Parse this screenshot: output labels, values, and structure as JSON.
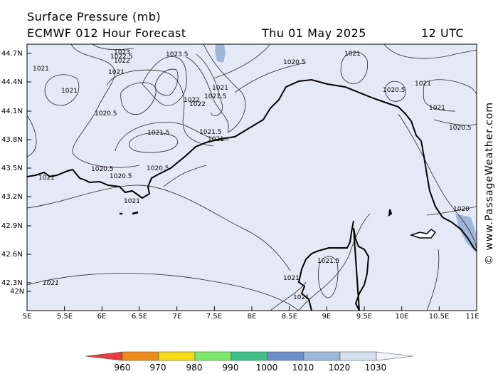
{
  "header": {
    "title": "Surface Pressure (mb)",
    "subtitle": "ECMWF 012 Hour Forecast",
    "date": "Thu 01 May 2025",
    "time": "12 UTC"
  },
  "credit": "© www.PassageWeather.com",
  "map": {
    "lat_labels": [
      "44.7N",
      "44.4N",
      "44.1N",
      "43.8N",
      "43.5N",
      "43.2N",
      "42.9N",
      "42.6N",
      "42.3N",
      "42N"
    ],
    "lon_labels": [
      "5E",
      "5.5E",
      "6E",
      "6.5E",
      "7E",
      "7.5E",
      "8E",
      "8.5E",
      "9E",
      "9.5E",
      "10E",
      "10.5E",
      "11E"
    ],
    "isobar_labels": [
      "1021",
      "1023",
      "1022",
      "1023.5",
      "1022.5",
      "1020.5",
      "1021",
      "1021",
      "1021",
      "1020.5",
      "1021",
      "1020.5",
      "1021",
      "1021.5",
      "1022",
      "1022",
      "1020.5",
      "1021",
      "1021.5",
      "1021.5",
      "1021",
      "1020.5",
      "1020.5",
      "1020.5",
      "1021",
      "1021",
      "1020",
      "1021.5",
      "1021",
      "1021",
      "1021"
    ],
    "colors": {
      "sea": "#e4eaf5",
      "land": "#ffffff",
      "high_band": "#9eb7d8"
    }
  },
  "scale": {
    "labels": [
      "960",
      "970",
      "980",
      "990",
      "1000",
      "1010",
      "1020",
      "1030"
    ],
    "colors": [
      "#e83c3c",
      "#f08a1a",
      "#f5dc14",
      "#7bea6a",
      "#3dc38a",
      "#6d8ec9",
      "#9eb7d8",
      "#d5e1f1",
      "#eef3fa"
    ]
  }
}
